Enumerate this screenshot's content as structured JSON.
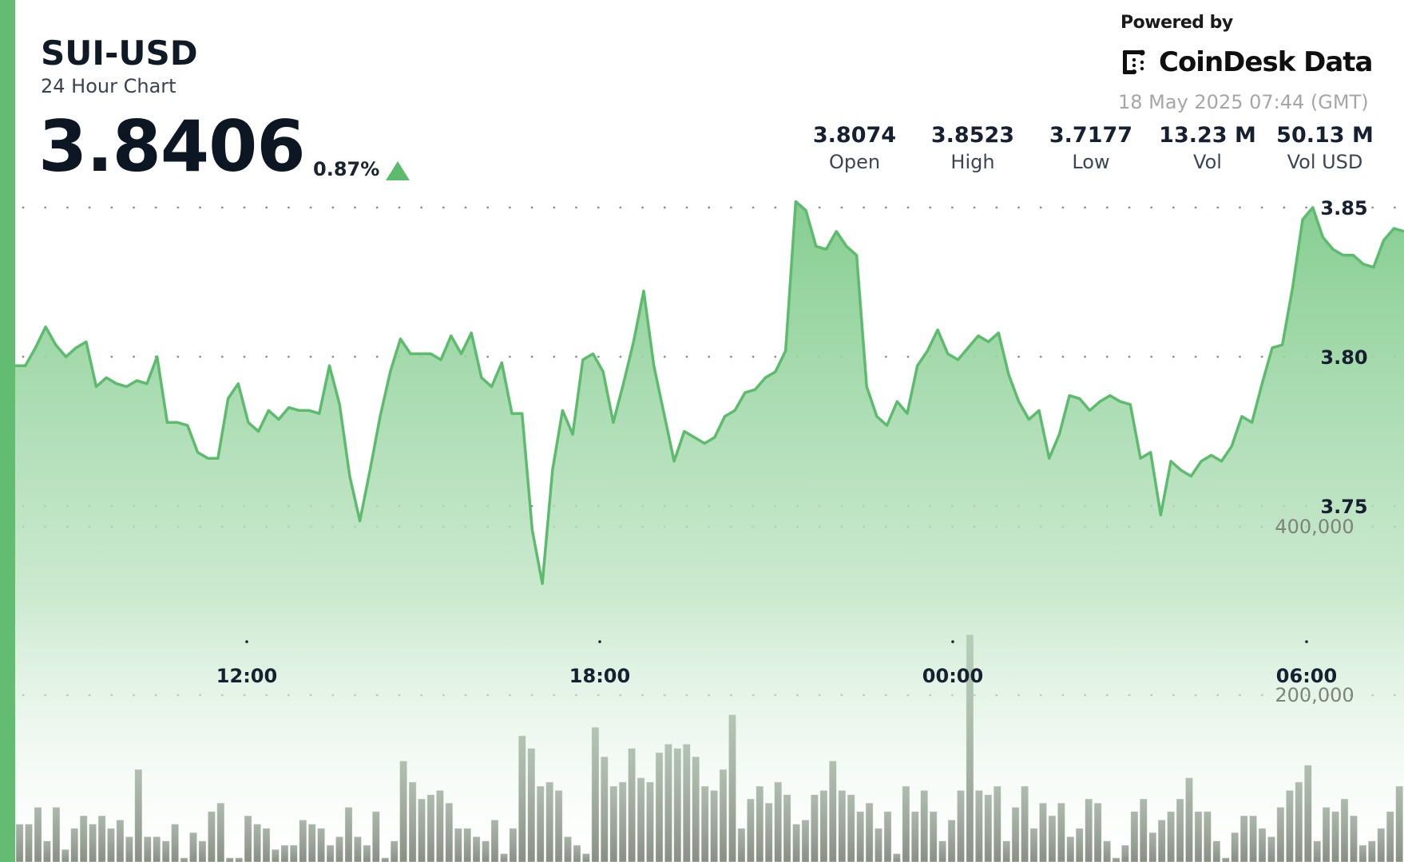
{
  "header": {
    "title": "SUI-USD",
    "subtitle": "24 Hour Chart",
    "price": "3.8406",
    "change_pct": "0.87%",
    "change_direction": "up"
  },
  "branding": {
    "powered_by": "Powered by",
    "name": "CoinDesk Data",
    "timestamp": "18 May 2025 07:44 (GMT)"
  },
  "stats": [
    {
      "value": "3.8074",
      "label": "Open"
    },
    {
      "value": "3.8523",
      "label": "High"
    },
    {
      "value": "3.7177",
      "label": "Low"
    },
    {
      "value": "13.23 M",
      "label": "Vol"
    },
    {
      "value": "50.13 M",
      "label": "Vol USD"
    }
  ],
  "colors": {
    "accent": "#62bd70",
    "line": "#5dbb6d",
    "fill_top": "#7fcb8b",
    "volume_bar": "#5f6b5e",
    "text": "#162030"
  },
  "chart_data": {
    "type": "area",
    "title": "SUI-USD 24 Hour Chart",
    "xlabel": "",
    "ylabel": "",
    "x_ticks": [
      "12:00",
      "18:00",
      "00:00",
      "06:00"
    ],
    "y_ticks": [
      "3.75",
      "3.80",
      "3.85"
    ],
    "ylim": [
      3.7,
      3.86
    ],
    "volume_ticks": [
      "200,000",
      "400,000"
    ],
    "volume_ylim": [
      0,
      400000
    ],
    "grid": "dotted horizontal",
    "series": [
      {
        "name": "Price",
        "type": "area",
        "values": [
          3.797,
          3.797,
          3.803,
          3.81,
          3.804,
          3.8,
          3.803,
          3.805,
          3.79,
          3.793,
          3.791,
          3.79,
          3.792,
          3.791,
          3.8,
          3.778,
          3.778,
          3.777,
          3.768,
          3.766,
          3.766,
          3.786,
          3.791,
          3.778,
          3.775,
          3.782,
          3.779,
          3.783,
          3.782,
          3.782,
          3.781,
          3.797,
          3.784,
          3.76,
          3.745,
          3.762,
          3.78,
          3.795,
          3.806,
          3.801,
          3.801,
          3.801,
          3.799,
          3.807,
          3.801,
          3.808,
          3.793,
          3.79,
          3.798,
          3.781,
          3.781,
          3.742,
          3.724,
          3.762,
          3.782,
          3.774,
          3.799,
          3.801,
          3.795,
          3.778,
          3.791,
          3.805,
          3.822,
          3.797,
          3.781,
          3.765,
          3.775,
          3.773,
          3.771,
          3.773,
          3.78,
          3.782,
          3.788,
          3.789,
          3.793,
          3.795,
          3.802,
          3.852,
          3.849,
          3.837,
          3.836,
          3.842,
          3.837,
          3.834,
          3.79,
          3.78,
          3.777,
          3.785,
          3.781,
          3.797,
          3.802,
          3.809,
          3.801,
          3.799,
          3.803,
          3.807,
          3.805,
          3.808,
          3.794,
          3.785,
          3.779,
          3.782,
          3.766,
          3.774,
          3.787,
          3.786,
          3.782,
          3.785,
          3.787,
          3.785,
          3.784,
          3.766,
          3.768,
          3.747,
          3.765,
          3.762,
          3.76,
          3.765,
          3.767,
          3.765,
          3.77,
          3.78,
          3.778,
          3.791,
          3.803,
          3.804,
          3.823,
          3.846,
          3.85,
          3.84,
          3.836,
          3.834,
          3.834,
          3.831,
          3.83,
          3.839,
          3.843,
          3.842
        ]
      },
      {
        "name": "Volume",
        "type": "bar",
        "values": [
          45000,
          45000,
          65000,
          25000,
          65000,
          15000,
          40000,
          55000,
          45000,
          55000,
          40000,
          50000,
          30000,
          110000,
          30000,
          30000,
          25000,
          45000,
          5000,
          35000,
          25000,
          60000,
          70000,
          5000,
          5000,
          55000,
          45000,
          40000,
          15000,
          20000,
          20000,
          50000,
          45000,
          40000,
          20000,
          30000,
          65000,
          30000,
          20000,
          60000,
          5000,
          25000,
          120000,
          95000,
          75000,
          80000,
          85000,
          70000,
          40000,
          40000,
          30000,
          25000,
          50000,
          10000,
          40000,
          150000,
          135000,
          90000,
          95000,
          85000,
          30000,
          20000,
          10000,
          160000,
          125000,
          90000,
          95000,
          135000,
          100000,
          95000,
          130000,
          140000,
          135000,
          140000,
          125000,
          90000,
          85000,
          110000,
          175000,
          40000,
          75000,
          90000,
          70000,
          95000,
          80000,
          45000,
          50000,
          80000,
          85000,
          120000,
          85000,
          80000,
          60000,
          70000,
          40000,
          60000,
          10000,
          90000,
          60000,
          85000,
          60000,
          25000,
          50000,
          85000,
          270000,
          85000,
          80000,
          90000,
          25000,
          65000,
          90000,
          40000,
          70000,
          55000,
          70000,
          30000,
          40000,
          75000,
          70000,
          25000,
          5000,
          20000,
          60000,
          75000,
          35000,
          50000,
          60000,
          75000,
          100000,
          60000,
          60000,
          25000,
          5000,
          35000,
          55000,
          55000,
          40000,
          30000,
          65000,
          85000,
          95000,
          115000,
          25000,
          65000,
          60000,
          75000,
          55000,
          20000,
          25000,
          40000,
          60000,
          90000
        ]
      }
    ]
  }
}
